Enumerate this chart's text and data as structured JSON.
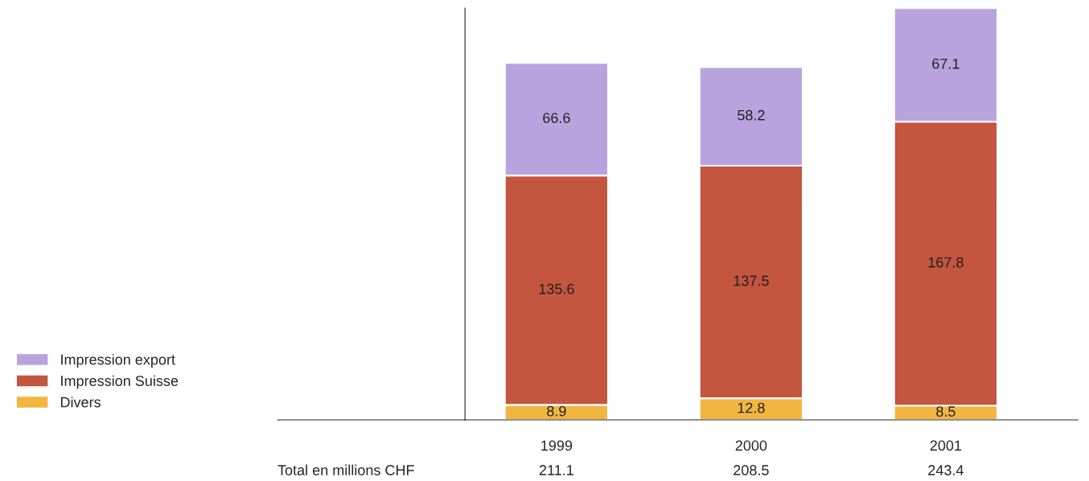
{
  "chart_data": {
    "type": "bar",
    "stacked": true,
    "data_labels": true,
    "legend": "bottom left",
    "grid": false,
    "categories": [
      "1999",
      "2000",
      "2001"
    ],
    "series": [
      {
        "name": "Divers",
        "color": "#f2b640",
        "values": [
          8.9,
          12.8,
          8.5
        ]
      },
      {
        "name": "Impression Suisse",
        "color": "#c4553f",
        "values": [
          135.6,
          137.5,
          167.8
        ]
      },
      {
        "name": "Impression export",
        "color": "#b9a3df",
        "values": [
          66.6,
          58.2,
          67.1
        ]
      }
    ],
    "totals": [
      "211.1",
      "208.5",
      "243.4"
    ],
    "annotations": [
      "Total en millions CHF"
    ]
  }
}
